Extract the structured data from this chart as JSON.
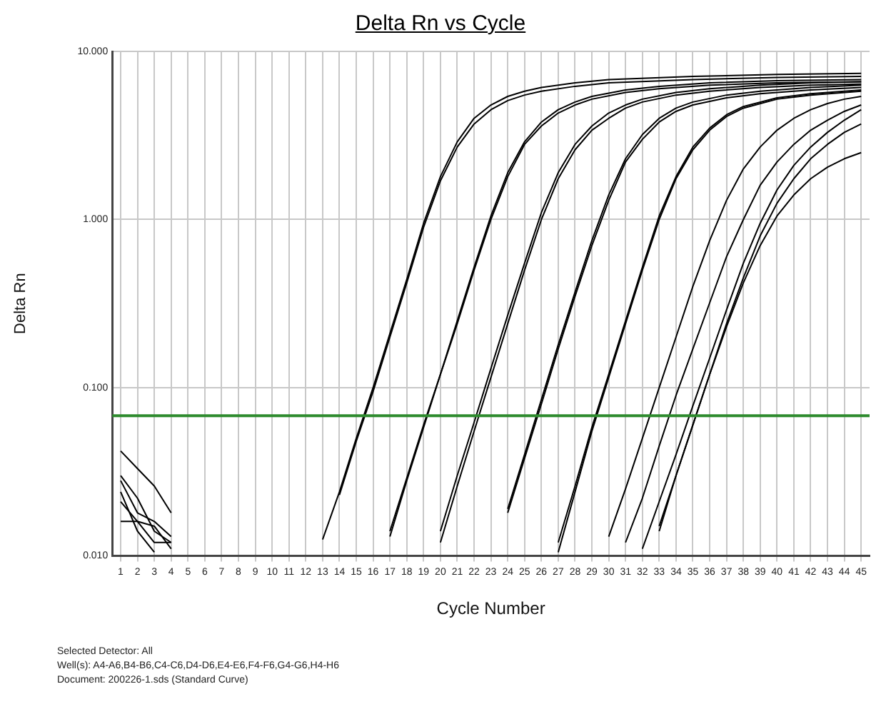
{
  "chart_data": {
    "type": "line",
    "title": "Delta Rn vs Cycle",
    "xlabel": "Cycle Number",
    "ylabel": "Delta Rn",
    "xlim": [
      0.5,
      45.5
    ],
    "xticks": [
      1,
      2,
      3,
      4,
      5,
      6,
      7,
      8,
      9,
      10,
      11,
      12,
      13,
      14,
      15,
      16,
      17,
      18,
      19,
      20,
      21,
      22,
      23,
      24,
      25,
      26,
      27,
      28,
      29,
      30,
      31,
      32,
      33,
      34,
      35,
      36,
      37,
      38,
      39,
      40,
      41,
      42,
      43,
      44,
      45
    ],
    "ylim": [
      0.01,
      10
    ],
    "yticks": [
      {
        "value": 0.01,
        "label": "0.010"
      },
      {
        "value": 0.1,
        "label": "0.100"
      },
      {
        "value": 1,
        "label": "1.000"
      },
      {
        "value": 10,
        "label": "10.000"
      }
    ],
    "log": "y",
    "grid": true,
    "legend": false,
    "marker": "none",
    "line_style": "solid",
    "series": [
      {
        "color": "#000000",
        "x": [
          1,
          2,
          3,
          4
        ],
        "values": [
          0.042,
          0.033,
          0.026,
          0.018
        ]
      },
      {
        "color": "#000000",
        "x": [
          1,
          2,
          3,
          4
        ],
        "values": [
          0.03,
          0.022,
          0.014,
          0.012
        ]
      },
      {
        "color": "#000000",
        "x": [
          1,
          2,
          3,
          4
        ],
        "values": [
          0.028,
          0.018,
          0.016,
          0.013
        ]
      },
      {
        "color": "#000000",
        "x": [
          1,
          2,
          3,
          4
        ],
        "values": [
          0.021,
          0.016,
          0.015,
          0.011
        ]
      },
      {
        "color": "#000000",
        "x": [
          1,
          2,
          3,
          4
        ],
        "values": [
          0.016,
          0.016,
          0.012,
          0.012
        ]
      },
      {
        "color": "#000000",
        "x": [
          1,
          2,
          3
        ],
        "values": [
          0.024,
          0.014,
          0.0105
        ]
      },
      {
        "color": "#000000",
        "x": [
          13,
          14,
          15,
          16,
          17,
          18,
          19,
          20,
          21,
          22,
          23,
          24,
          25,
          26,
          28,
          30,
          35,
          40,
          45
        ],
        "values": [
          0.0125,
          0.024,
          0.05,
          0.1,
          0.21,
          0.44,
          0.95,
          1.8,
          2.9,
          4.0,
          4.8,
          5.4,
          5.8,
          6.1,
          6.5,
          6.8,
          7.1,
          7.3,
          7.4
        ]
      },
      {
        "color": "#000000",
        "x": [
          14,
          15,
          16,
          17,
          18,
          19,
          20,
          21,
          22,
          23,
          24,
          25,
          26,
          28,
          30,
          35,
          40,
          45
        ],
        "values": [
          0.023,
          0.048,
          0.095,
          0.2,
          0.42,
          0.9,
          1.7,
          2.7,
          3.7,
          4.5,
          5.1,
          5.5,
          5.8,
          6.2,
          6.5,
          6.8,
          7.0,
          7.1
        ]
      },
      {
        "color": "#000000",
        "x": [
          17,
          18,
          19,
          20,
          21,
          22,
          23,
          24,
          25,
          26,
          27,
          28,
          29,
          31,
          33,
          36,
          40,
          45
        ],
        "values": [
          0.014,
          0.029,
          0.06,
          0.12,
          0.25,
          0.52,
          1.05,
          1.9,
          2.9,
          3.8,
          4.5,
          5.0,
          5.4,
          5.9,
          6.2,
          6.5,
          6.7,
          6.8
        ]
      },
      {
        "color": "#000000",
        "x": [
          17,
          18,
          19,
          20,
          21,
          22,
          23,
          24,
          25,
          26,
          27,
          28,
          29,
          31,
          33,
          36,
          40,
          45
        ],
        "values": [
          0.013,
          0.028,
          0.058,
          0.12,
          0.24,
          0.5,
          1.0,
          1.8,
          2.8,
          3.6,
          4.3,
          4.8,
          5.2,
          5.7,
          6.0,
          6.3,
          6.5,
          6.6
        ]
      },
      {
        "color": "#000000",
        "x": [
          20,
          21,
          22,
          23,
          24,
          25,
          26,
          27,
          28,
          29,
          30,
          31,
          32,
          34,
          36,
          39,
          42,
          45
        ],
        "values": [
          0.014,
          0.03,
          0.062,
          0.13,
          0.27,
          0.55,
          1.1,
          1.9,
          2.8,
          3.6,
          4.3,
          4.8,
          5.2,
          5.7,
          6.0,
          6.3,
          6.5,
          6.6
        ]
      },
      {
        "color": "#000000",
        "x": [
          20,
          21,
          22,
          23,
          24,
          25,
          26,
          27,
          28,
          29,
          30,
          31,
          32,
          34,
          36,
          39,
          42,
          45
        ],
        "values": [
          0.012,
          0.026,
          0.055,
          0.115,
          0.24,
          0.5,
          1.0,
          1.75,
          2.6,
          3.4,
          4.0,
          4.6,
          5.0,
          5.5,
          5.8,
          6.1,
          6.3,
          6.4
        ]
      },
      {
        "color": "#000000",
        "x": [
          24,
          25,
          26,
          27,
          28,
          29,
          30,
          31,
          32,
          33,
          34,
          35,
          37,
          39,
          42,
          45
        ],
        "values": [
          0.019,
          0.04,
          0.085,
          0.18,
          0.37,
          0.75,
          1.4,
          2.3,
          3.2,
          4.0,
          4.6,
          5.0,
          5.5,
          5.8,
          6.1,
          6.3
        ]
      },
      {
        "color": "#000000",
        "x": [
          24,
          25,
          26,
          27,
          28,
          29,
          30,
          31,
          32,
          33,
          34,
          35,
          37,
          39,
          42,
          45
        ],
        "values": [
          0.018,
          0.038,
          0.08,
          0.17,
          0.35,
          0.7,
          1.3,
          2.2,
          3.0,
          3.8,
          4.4,
          4.8,
          5.3,
          5.6,
          5.9,
          6.1
        ]
      },
      {
        "color": "#000000",
        "x": [
          27,
          28,
          29,
          30,
          31,
          32,
          33,
          34,
          35,
          36,
          37,
          38,
          40,
          42,
          45
        ],
        "values": [
          0.012,
          0.026,
          0.058,
          0.12,
          0.25,
          0.52,
          1.05,
          1.8,
          2.7,
          3.5,
          4.2,
          4.7,
          5.3,
          5.6,
          5.9
        ]
      },
      {
        "color": "#000000",
        "x": [
          27,
          28,
          29,
          30,
          31,
          32,
          33,
          34,
          35,
          36,
          37,
          38,
          40,
          42,
          45
        ],
        "values": [
          0.0105,
          0.024,
          0.055,
          0.115,
          0.24,
          0.5,
          1.0,
          1.75,
          2.6,
          3.4,
          4.1,
          4.6,
          5.2,
          5.5,
          5.8
        ]
      },
      {
        "color": "#000000",
        "x": [
          30,
          31,
          32,
          33,
          34,
          35,
          36,
          37,
          38,
          39,
          40,
          41,
          42,
          43,
          44,
          45
        ],
        "values": [
          0.013,
          0.025,
          0.05,
          0.1,
          0.2,
          0.4,
          0.75,
          1.3,
          2.0,
          2.7,
          3.4,
          4.0,
          4.5,
          4.9,
          5.2,
          5.4
        ]
      },
      {
        "color": "#000000",
        "x": [
          31,
          32,
          33,
          34,
          35,
          36,
          37,
          38,
          39,
          40,
          41,
          42,
          43,
          44,
          45
        ],
        "values": [
          0.012,
          0.022,
          0.045,
          0.09,
          0.17,
          0.32,
          0.6,
          1.0,
          1.6,
          2.2,
          2.8,
          3.4,
          3.9,
          4.4,
          4.8
        ]
      },
      {
        "color": "#000000",
        "x": [
          32,
          33,
          34,
          35,
          36,
          37,
          38,
          39,
          40,
          41,
          42,
          43,
          44,
          45
        ],
        "values": [
          0.011,
          0.021,
          0.04,
          0.078,
          0.15,
          0.29,
          0.55,
          0.95,
          1.5,
          2.1,
          2.7,
          3.3,
          3.9,
          4.5
        ]
      },
      {
        "color": "#000000",
        "x": [
          33,
          34,
          35,
          36,
          37,
          38,
          39,
          40,
          41,
          42,
          43,
          44,
          45
        ],
        "values": [
          0.014,
          0.03,
          0.06,
          0.12,
          0.24,
          0.45,
          0.8,
          1.25,
          1.75,
          2.3,
          2.8,
          3.3,
          3.7
        ]
      },
      {
        "color": "#000000",
        "x": [
          33,
          34,
          35,
          36,
          37,
          38,
          39,
          40,
          41,
          42,
          43,
          44,
          45
        ],
        "values": [
          0.015,
          0.03,
          0.06,
          0.12,
          0.23,
          0.42,
          0.7,
          1.05,
          1.4,
          1.75,
          2.05,
          2.3,
          2.5
        ]
      }
    ],
    "ref_lines": [
      {
        "axis": "y",
        "value": 0.068,
        "color": "#2e8b2e"
      }
    ],
    "annotations": [
      "Selected Detector: All",
      "Well(s): A4-A6,B4-B6,C4-C6,D4-D6,E4-E6,F4-F6,G4-G6,H4-H6",
      "Document: 200226-1.sds (Standard Curve)"
    ]
  }
}
